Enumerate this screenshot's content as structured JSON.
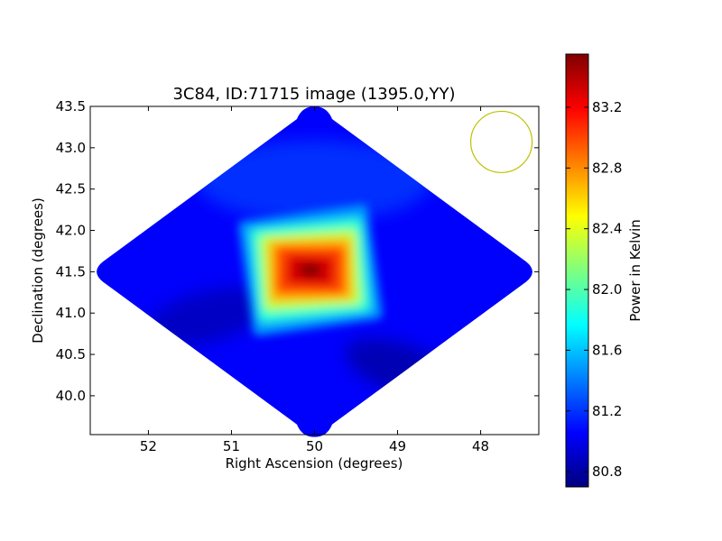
{
  "chart_data": {
    "type": "heatmap",
    "title": "3C84, ID:71715 image (1395.0,YY)",
    "xlabel": "Right Ascension (degrees)",
    "ylabel": "Declination (degrees)",
    "xlim": [
      52.7,
      47.3
    ],
    "ylim": [
      39.53,
      43.5
    ],
    "x_axis_inverted": true,
    "x_ticks": [
      52,
      51,
      50,
      49,
      48
    ],
    "x_tick_labels": [
      "52",
      "51",
      "50",
      "49",
      "48"
    ],
    "y_ticks": [
      40.0,
      40.5,
      41.0,
      41.5,
      42.0,
      42.5,
      43.0,
      43.5
    ],
    "y_tick_labels": [
      "40.0",
      "40.5",
      "41.0",
      "41.5",
      "42.0",
      "42.5",
      "43.0",
      "43.5"
    ],
    "grid": false,
    "footprint": {
      "shape": "diamond",
      "center": [
        50.0,
        41.5
      ],
      "ra_half_width": 2.7,
      "dec_half_height": 2.0
    },
    "background_level": 81.05,
    "peak": {
      "ra": 50.05,
      "dec": 41.52,
      "value": 83.55
    },
    "emission_features": [
      {
        "name": "central source core",
        "ra": 50.05,
        "dec": 41.52,
        "value": 83.5
      },
      {
        "name": "central source halo",
        "ra": 50.1,
        "dec": 41.55,
        "value": 82.3
      },
      {
        "name": "low lobe south-east",
        "ra": 51.3,
        "dec": 40.95,
        "value": 80.85
      },
      {
        "name": "low lobe south-west",
        "ra": 48.9,
        "dec": 40.3,
        "value": 80.8
      }
    ],
    "beam_marker": {
      "ra": 47.75,
      "dec": 43.07,
      "color": "#bfbf00"
    },
    "colorbar": {
      "label": "Power in Kelvin",
      "min": 80.7,
      "max": 83.55,
      "ticks": [
        80.8,
        81.2,
        81.6,
        82.0,
        82.4,
        82.8,
        83.2
      ],
      "tick_labels": [
        "80.8",
        "81.2",
        "81.6",
        "82.0",
        "82.4",
        "82.8",
        "83.2"
      ],
      "colormap": "jet",
      "colors": [
        "#00007f",
        "#0000ff",
        "#007fff",
        "#00ffff",
        "#7fff7f",
        "#ffff00",
        "#ff7f00",
        "#ff0000",
        "#7f0000"
      ]
    }
  }
}
